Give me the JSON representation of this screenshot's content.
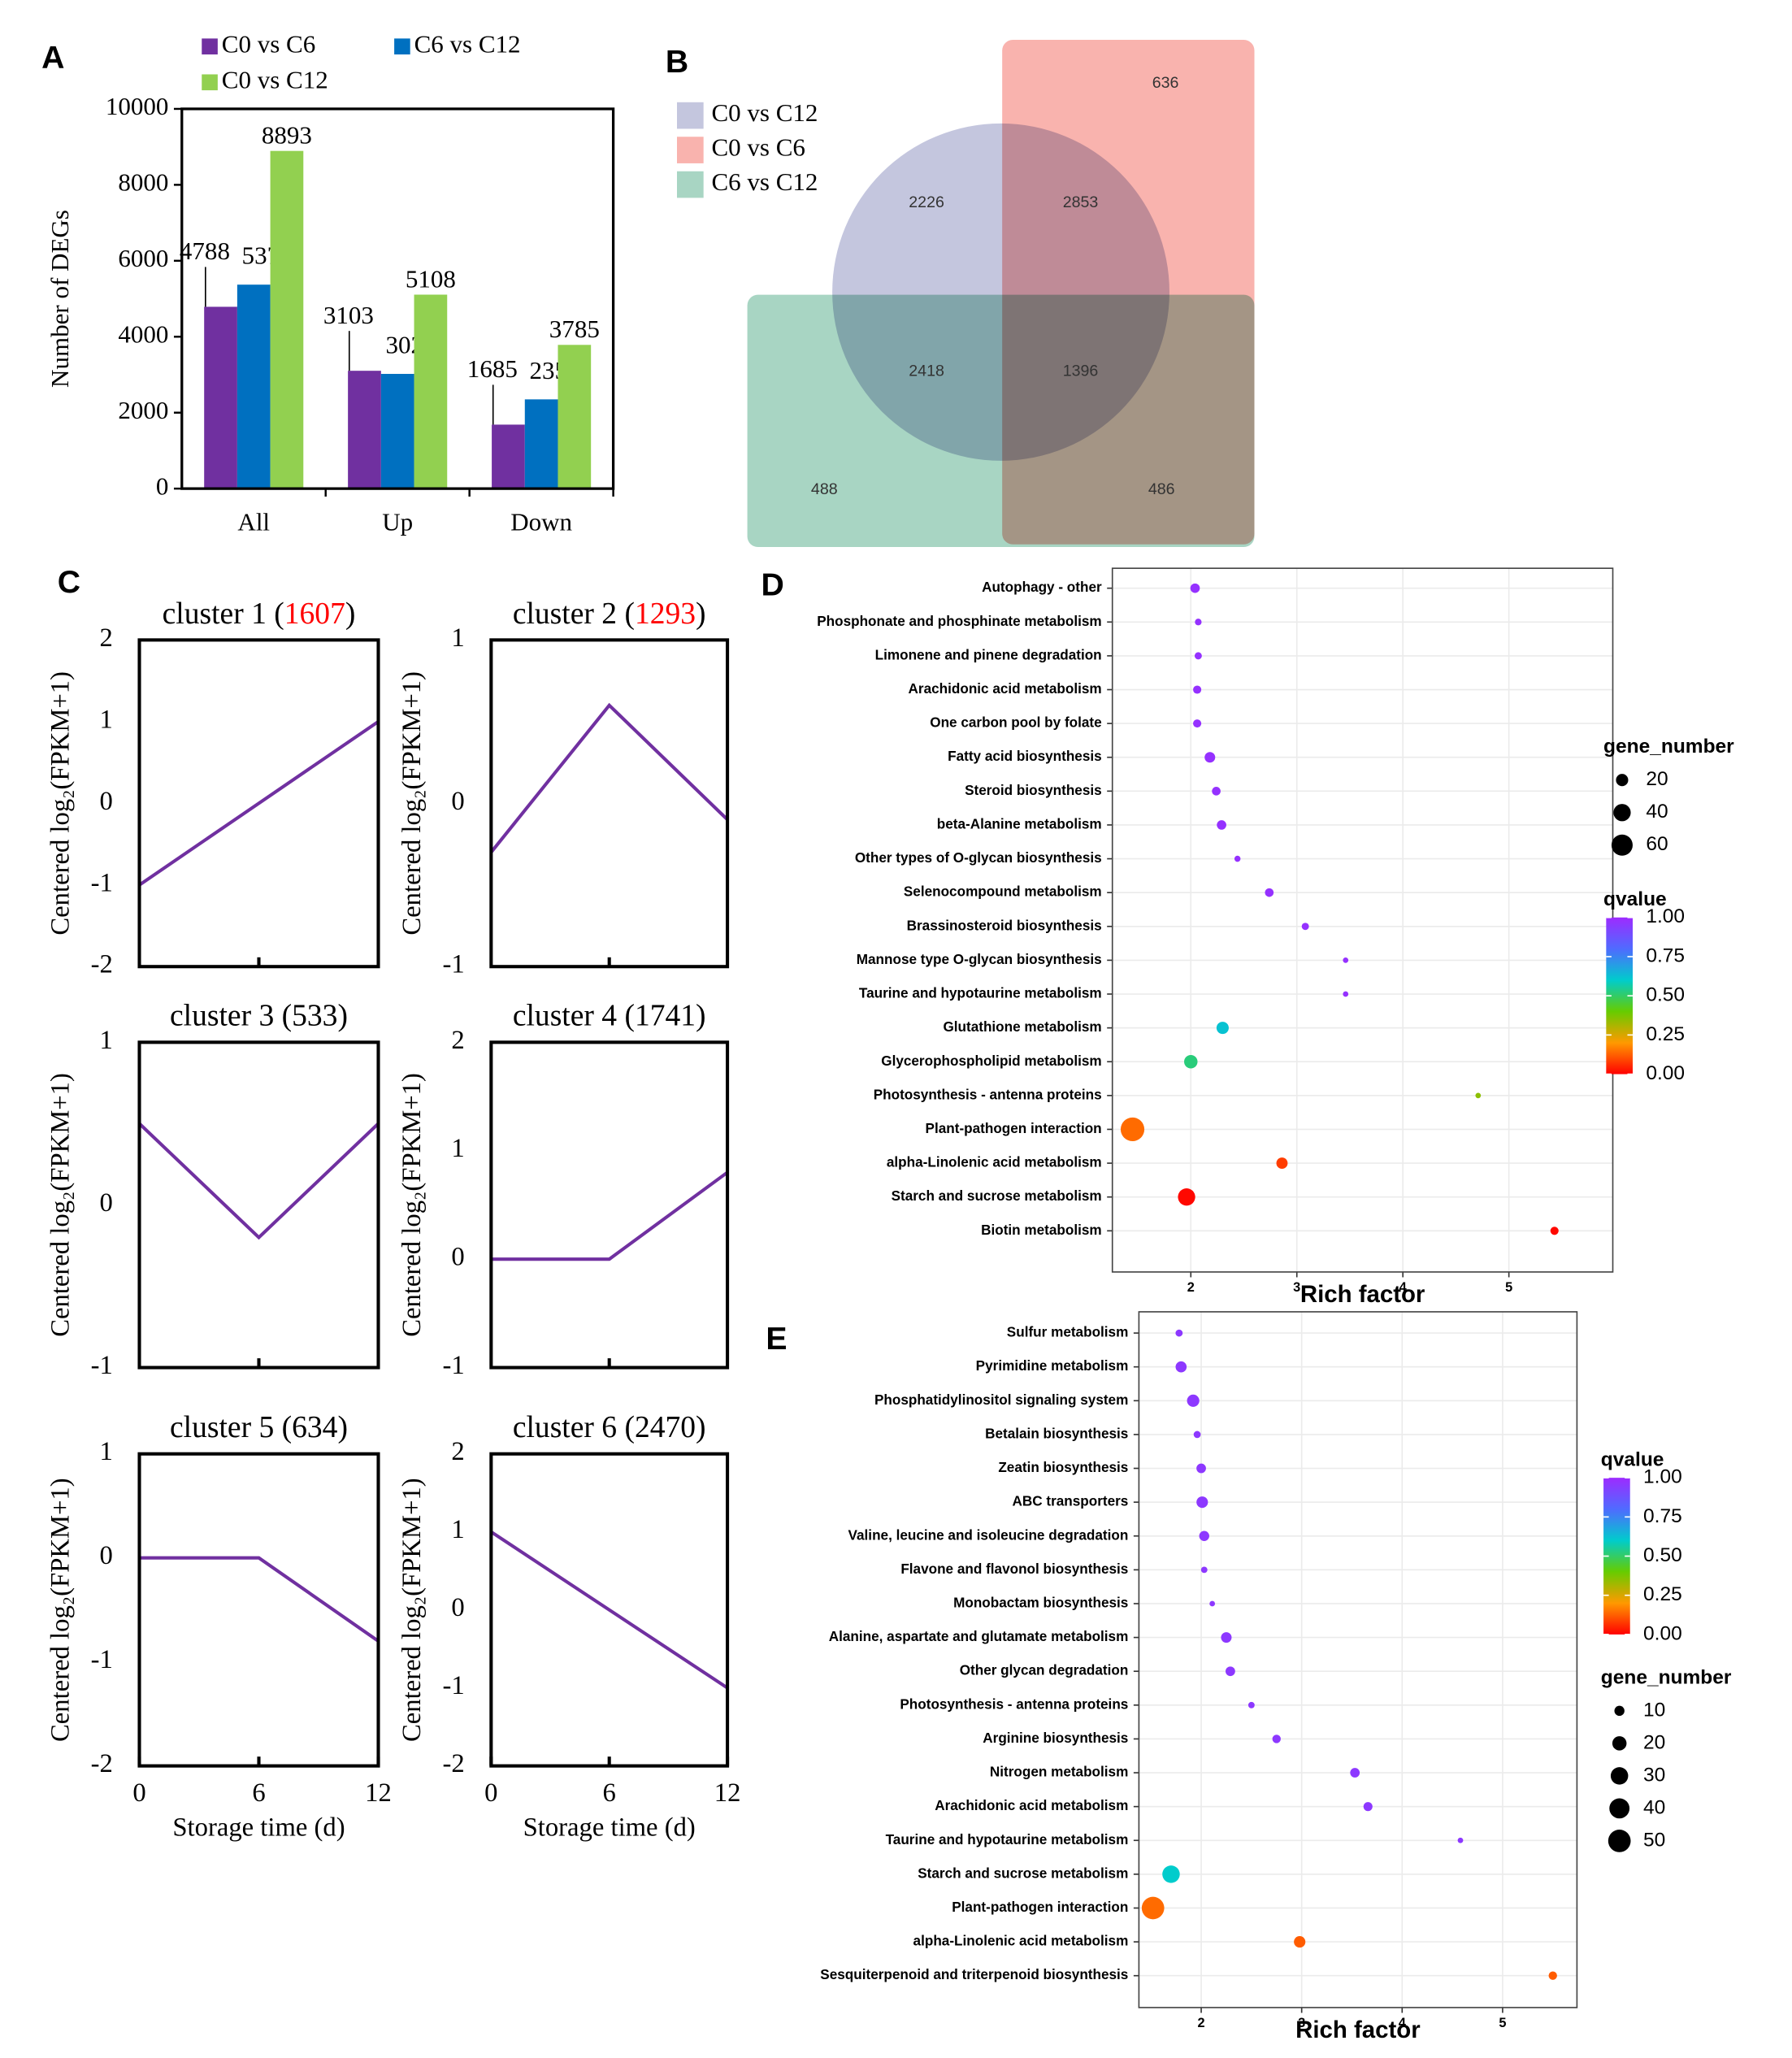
{
  "chart_data": [
    {
      "type": "bar",
      "panel": "A",
      "categories": [
        "All",
        "Up",
        "Down"
      ],
      "series": [
        {
          "name": "C0 vs C6",
          "color": "#7030a0",
          "values": [
            4788,
            3103,
            1685
          ]
        },
        {
          "name": "C6 vs C12",
          "color": "#0070c0",
          "values": [
            5371,
            3021,
            2350
          ]
        },
        {
          "name": "C0 vs C12",
          "color": "#92d050",
          "values": [
            8893,
            5108,
            3785
          ]
        }
      ],
      "ylim": [
        0,
        10000
      ],
      "yticks": [
        0,
        2000,
        4000,
        6000,
        8000,
        10000
      ],
      "ylabel": "Number of DEGs"
    },
    {
      "type": "venn",
      "panel": "B",
      "sets": [
        {
          "name": "C0 vs C12",
          "color": "#c4c6de"
        },
        {
          "name": "C0 vs C6",
          "color": "#f9b3ae"
        },
        {
          "name": "C6 vs C12",
          "color": "#a8d5c3"
        }
      ],
      "values": [
        636,
        2226,
        2853,
        2418,
        1396,
        488,
        486
      ]
    },
    {
      "type": "line",
      "panel": "C",
      "title": "cluster 1 (1607)",
      "highlight": "1607",
      "highlight_color": "#ff0000",
      "color": "#7030a0",
      "x": [
        0,
        6,
        12
      ],
      "values": [
        -1,
        0,
        1
      ],
      "xlim": [
        0,
        12
      ],
      "ylim": [
        -2,
        2
      ],
      "yticks": [
        -2,
        -1,
        0,
        1,
        2
      ],
      "ylabel": "Centered log₂(FPKM+1)"
    },
    {
      "type": "line",
      "title": "cluster 2 (1293)",
      "highlight": "1293",
      "highlight_color": "#ff0000",
      "color": "#7030a0",
      "x": [
        0,
        6,
        12
      ],
      "values": [
        -0.3,
        0.6,
        -0.1
      ],
      "xlim": [
        0,
        12
      ],
      "ylim": [
        -1,
        1
      ],
      "yticks": [
        -1,
        0,
        1
      ],
      "ylabel": "Centered log₂(FPKM+1)"
    },
    {
      "type": "line",
      "title": "cluster 3 (533)",
      "color": "#7030a0",
      "x": [
        0,
        6,
        12
      ],
      "values": [
        0.5,
        -0.2,
        0.5
      ],
      "xlim": [
        0,
        12
      ],
      "ylim": [
        -1,
        1
      ],
      "yticks": [
        -1,
        0,
        1
      ],
      "ylabel": "Centered log₂(FPKM+1)"
    },
    {
      "type": "line",
      "title": "cluster 4 (1741)",
      "color": "#7030a0",
      "x": [
        0,
        6,
        12
      ],
      "values": [
        0,
        0,
        0.8
      ],
      "xlim": [
        0,
        12
      ],
      "ylim": [
        -1,
        2
      ],
      "yticks": [
        -1,
        0,
        1,
        2
      ],
      "ylabel": "Centered log₂(FPKM+1)"
    },
    {
      "type": "line",
      "title": "cluster 5 (634)",
      "color": "#7030a0",
      "x": [
        0,
        6,
        12
      ],
      "values": [
        0,
        0,
        -0.8
      ],
      "xlim": [
        0,
        12
      ],
      "ylim": [
        -2,
        1
      ],
      "yticks": [
        -2,
        -1,
        0,
        1
      ],
      "xticks": [
        0,
        6,
        12
      ],
      "ylabel": "Centered log₂(FPKM+1)",
      "xlabel": "Storage time (d)"
    },
    {
      "type": "line",
      "title": "cluster 6 (2470)",
      "color": "#7030a0",
      "x": [
        0,
        6,
        12
      ],
      "values": [
        1,
        0,
        -1
      ],
      "xlim": [
        0,
        12
      ],
      "ylim": [
        -2,
        2
      ],
      "yticks": [
        -2,
        -1,
        0,
        1,
        2
      ],
      "xticks": [
        0,
        6,
        12
      ],
      "ylabel": "Centered log₂(FPKM+1)",
      "xlabel": "Storage time (d)"
    },
    {
      "type": "bubble",
      "panel": "D",
      "categories": [
        "Autophagy - other",
        "Phosphonate and phosphinate metabolism",
        "Limonene and pinene degradation",
        "Arachidonic acid metabolism",
        "One carbon pool by folate",
        "Fatty acid biosynthesis",
        "Steroid biosynthesis",
        "beta-Alanine metabolism",
        "Other types of O-glycan biosynthesis",
        "Selenocompound metabolism",
        "Brassinosteroid biosynthesis",
        "Mannose type O-glycan biosynthesis",
        "Taurine and hypotaurine metabolism",
        "Glutathione metabolism",
        "Glycerophospholipid metabolism",
        "Photosynthesis - antenna proteins",
        "Plant-pathogen interaction",
        "alpha-Linolenic acid metabolism",
        "Starch and sucrose metabolism",
        "Biotin metabolism"
      ],
      "values": [
        2.04,
        2.07,
        2.07,
        2.06,
        2.06,
        2.18,
        2.24,
        2.29,
        2.44,
        2.74,
        3.08,
        3.46,
        3.46,
        2.3,
        2.0,
        4.71,
        1.45,
        2.86,
        1.96,
        5.43
      ],
      "sizes": [
        12,
        6,
        7,
        9,
        9,
        15,
        10,
        12,
        5,
        10,
        7,
        4,
        4,
        20,
        24,
        4,
        75,
        17,
        40,
        9
      ],
      "qvalues": [
        0.98,
        0.98,
        0.98,
        0.98,
        0.98,
        0.98,
        0.98,
        0.98,
        0.98,
        0.98,
        0.98,
        0.98,
        0.98,
        0.62,
        0.52,
        0.35,
        0.14,
        0.08,
        0.01,
        0.01
      ],
      "xlim": [
        1.26,
        5.98
      ],
      "xticks": [
        2,
        3,
        4,
        5
      ],
      "xlabel": "Rich factor",
      "size_title": "gene_number",
      "size_ticks": [
        20,
        40,
        60
      ],
      "color_title": "qvalue",
      "color_ticks": [
        {
          "value": 0,
          "label": "0.00"
        },
        {
          "value": 0.25,
          "label": "0.25"
        },
        {
          "value": 0.5,
          "label": "0.50"
        },
        {
          "value": 0.75,
          "label": "0.75"
        },
        {
          "value": 1,
          "label": "1.00"
        }
      ],
      "colormap": [
        "#ff0000",
        "#ff9900",
        "#66cc00",
        "#00cccc",
        "#4f6bff",
        "#9d2bff"
      ],
      "grid": true
    },
    {
      "type": "bubble",
      "panel": "E",
      "categories": [
        "Sulfur metabolism",
        "Pyrimidine metabolism",
        "Phosphatidylinositol signaling system",
        "Betalain biosynthesis",
        "Zeatin biosynthesis",
        "ABC transporters",
        "Valine, leucine and isoleucine degradation",
        "Flavone and flavonol biosynthesis",
        "Monobactam biosynthesis",
        "Alanine, aspartate and glutamate metabolism",
        "Other glycan degradation",
        "Photosynthesis - antenna proteins",
        "Arginine biosynthesis",
        "Nitrogen metabolism",
        "Arachidonic acid metabolism",
        "Taurine and hypotaurine metabolism",
        "Starch and sucrose metabolism",
        "Plant-pathogen interaction",
        "alpha-Linolenic acid metabolism",
        "Sesquiterpenoid and triterpenoid biosynthesis"
      ],
      "values": [
        1.78,
        1.8,
        1.92,
        1.96,
        2.0,
        2.01,
        2.03,
        2.03,
        2.11,
        2.25,
        2.29,
        2.5,
        2.75,
        3.53,
        3.66,
        4.58,
        1.7,
        1.52,
        2.98,
        5.5
      ],
      "sizes": [
        5,
        12,
        15,
        5,
        9,
        13,
        10,
        4,
        3,
        11,
        9,
        4,
        7,
        9,
        8,
        3,
        30,
        50,
        13,
        7
      ],
      "qvalues": [
        0.96,
        0.96,
        0.96,
        0.96,
        0.96,
        0.96,
        0.96,
        0.96,
        0.96,
        0.96,
        0.96,
        0.96,
        0.96,
        0.96,
        0.96,
        0.96,
        0.6,
        0.14,
        0.12,
        0.12
      ],
      "xlim": [
        1.38,
        5.74
      ],
      "xticks": [
        2,
        3,
        4,
        5
      ],
      "xlabel": "Rich factor",
      "color_title": "qvalue",
      "color_ticks": [
        {
          "value": 0,
          "label": "0.00"
        },
        {
          "value": 0.25,
          "label": "0.25"
        },
        {
          "value": 0.5,
          "label": "0.50"
        },
        {
          "value": 0.75,
          "label": "0.75"
        },
        {
          "value": 1,
          "label": "1.00"
        }
      ],
      "size_title": "gene_number",
      "size_ticks": [
        10,
        20,
        30,
        40,
        50
      ],
      "colormap": [
        "#ff0000",
        "#ff9900",
        "#66cc00",
        "#00cccc",
        "#4f6bff",
        "#9d2bff"
      ],
      "grid": true
    }
  ]
}
